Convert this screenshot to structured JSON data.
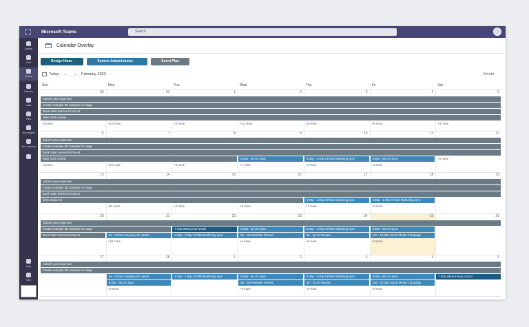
{
  "app": {
    "title": "Microsoft Teams",
    "search_placeholder": "Search"
  },
  "rail": [
    "Activity",
    "Chat",
    "Teams",
    "Calendar",
    "Calls",
    "Files",
    "Viva Insights",
    "Viva Learning",
    "...",
    "Apps",
    "Help"
  ],
  "header": {
    "title": "Calendar Overlay"
  },
  "calendars": [
    {
      "name": "Design Ideas",
      "color": "#1f5e7c"
    },
    {
      "name": "System Administrator",
      "color": "#2f78a8"
    },
    {
      "name": "Event Plan",
      "color": "#6b7a83"
    }
  ],
  "nav": {
    "today": "Today",
    "month": "February 2022",
    "view": "Month"
  },
  "weekdays": [
    "Sun",
    "Mon",
    "Tue",
    "Wed",
    "Thu",
    "Fri",
    "Sat"
  ],
  "weeks": [
    {
      "dates": [
        30,
        31,
        1,
        2,
        3,
        4,
        5
      ],
      "rows": [
        [
          {
            "text": "Submit your expenses",
            "span": 7,
            "color": "#6a7b85"
          }
        ],
        [
          {
            "text": "Create example 3D samples for stage",
            "span": 7,
            "color": "#6a7b85"
          }
        ],
        [
          {
            "text": "Book Valet Service for Event",
            "span": 7,
            "color": "#6a7b85"
          }
        ],
        [
          {
            "text": "Main Deck review",
            "span": 7,
            "color": "#6a7b85"
          }
        ]
      ],
      "more": [
        "+3 more",
        "+14 more",
        "+4 more",
        "+13 more",
        "+8 more",
        "+8 more",
        "+4 more"
      ]
    },
    {
      "dates": [
        6,
        7,
        8,
        9,
        10,
        11,
        12
      ],
      "rows": [
        [
          {
            "text": "Submit your expenses",
            "span": 7,
            "color": "#6a7b85"
          }
        ],
        [
          {
            "text": "Create example 3D samples for stage",
            "span": 7,
            "color": "#6a7b85"
          }
        ],
        [
          {
            "text": "Book Valet Service for Event",
            "span": 7,
            "color": "#6a7b85"
          }
        ],
        [
          {
            "text": "Main Deck review",
            "span": 3,
            "color": "#6a7b85"
          },
          {
            "text": "9:30a - 9a UX Sync",
            "span": 1,
            "color": "#3f87b8"
          },
          {
            "text": "3:30p - 4:30p SYD50 Marketing sync",
            "span": 1,
            "color": "#3f87b8"
          },
          {
            "text": "9:30a - 9a UX Sync",
            "span": 1,
            "color": "#3f87b8"
          },
          null
        ]
      ],
      "more": [
        "+3 more",
        "+14 more",
        "+8 more",
        "+2 more",
        "+2 more",
        "+4 more",
        "+1 more"
      ]
    },
    {
      "dates": [
        13,
        14,
        15,
        16,
        17,
        18,
        19
      ],
      "rows": [
        [
          {
            "text": "Submit your expenses",
            "span": 7,
            "color": "#6a7b85"
          }
        ],
        [
          {
            "text": "Create example 3D samples for stage",
            "span": 7,
            "color": "#6a7b85"
          }
        ],
        [
          {
            "text": "Book Valet Service for Event",
            "span": 7,
            "color": "#6a7b85"
          }
        ],
        [
          {
            "text": "Web Media Kit",
            "span": 4,
            "color": "#6a7b85"
          },
          {
            "text": "3:30p - 4:30p SYD50 Marketing sync",
            "span": 1,
            "color": "#3f87b8"
          },
          {
            "text": "3:30p - 4:30p SYD50 Marketing sync",
            "span": 1,
            "color": "#3f87b8"
          },
          null
        ]
      ],
      "more": [
        null,
        "+11 more",
        "+2 more",
        "+8 more",
        "+1 more",
        "+2 more",
        null
      ]
    },
    {
      "dates": [
        20,
        21,
        22,
        23,
        24,
        25,
        26
      ],
      "highlight_day": 5,
      "rows": [
        [
          {
            "text": "Submit your expenses",
            "span": 7,
            "color": "#6a7b85"
          }
        ],
        [
          {
            "text": "Create example 3D samples for stage",
            "span": 2,
            "color": "#6a7b85"
          },
          {
            "text": "7:30a Waterproof Model",
            "span": 1,
            "color": "#1d5a80"
          },
          {
            "text": "9:30a - 9a UX Sync",
            "span": 1,
            "color": "#3f87b8"
          },
          {
            "text": "3:30p - 4:30p SYD50 Marketing sync",
            "span": 1,
            "color": "#3f87b8"
          },
          {
            "text": "9:30a - 9a UX Sync",
            "span": 1,
            "color": "#3f87b8"
          },
          null
        ],
        [
          {
            "text": "Book Valet Service for Event",
            "span": 1,
            "color": "#6a7b85"
          },
          {
            "text": "8a - 8:30a Company All Hands",
            "span": 1,
            "color": "#3f87b8"
          },
          {
            "text": "3:30p - 4:30p SYD50 Marketing sync",
            "span": 1,
            "color": "#3f87b8"
          },
          {
            "text": "9a - 10a Website Review",
            "span": 1,
            "color": "#3f87b8"
          },
          {
            "text": "6p - 7p Art Review",
            "span": 1,
            "color": "#3f87b8"
          },
          {
            "text": "10a - 10:30a Social Media Campaign",
            "span": 1,
            "color": "#3f87b8"
          },
          null
        ]
      ],
      "more": [
        null,
        "+10 more",
        null,
        "+6 more",
        "+6 more",
        "+2 more",
        null
      ]
    },
    {
      "dates": [
        27,
        28,
        1,
        2,
        3,
        4,
        5
      ],
      "rows": [
        [
          {
            "text": "Submit your expenses",
            "span": 7,
            "color": "#6a7b85"
          }
        ],
        [
          {
            "text": "Create example 3D samples for stage",
            "span": 7,
            "color": "#6a7b85"
          }
        ],
        [
          null,
          {
            "text": "8a - 8:30a Company All Hands",
            "span": 1,
            "color": "#3f87b8"
          },
          {
            "text": "3:30p - 4:30p SYD50 Marketing sync",
            "span": 1,
            "color": "#3f87b8"
          },
          {
            "text": "9:30a - 9a UX Sync",
            "span": 1,
            "color": "#3f87b8"
          },
          {
            "text": "3:30p - 4:30p SYD50 Marketing sync",
            "span": 1,
            "color": "#3f87b8"
          },
          {
            "text": "9:30a - 9a UX Sync",
            "span": 1,
            "color": "#3f87b8"
          },
          {
            "text": "7:30a Vibrant Body Colors",
            "span": 1,
            "color": "#1d5a80"
          }
        ],
        [
          null,
          {
            "text": "8:30a - 9a UX Sync",
            "span": 1,
            "color": "#3f87b8"
          },
          null,
          {
            "text": "9a - 10a Website Review",
            "span": 1,
            "color": "#3f87b8"
          },
          {
            "text": "6p - 7p Art Review",
            "span": 1,
            "color": "#3f87b8"
          },
          {
            "text": "10a - 10:30a Social Media Campaign",
            "span": 1,
            "color": "#3f87b8"
          },
          null
        ]
      ],
      "more": [
        null,
        "+9 more",
        null,
        "+6 more",
        "+6 more",
        "+2 more",
        null
      ]
    }
  ]
}
